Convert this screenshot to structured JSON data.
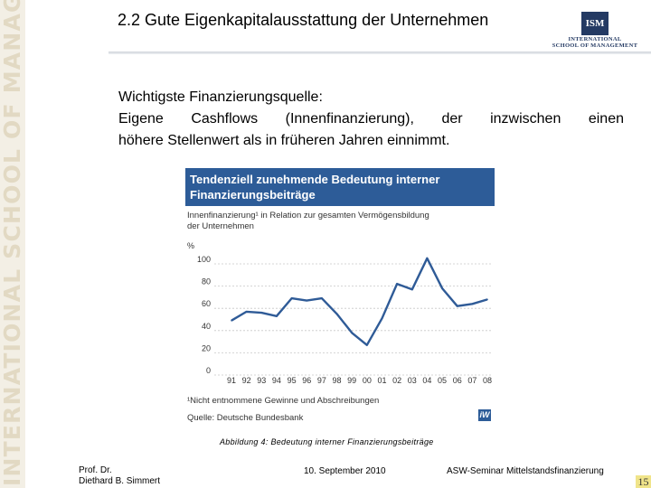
{
  "sidebar": {
    "brand_text": "INTERNATIONAL SCHOOL OF MANAGEMENT"
  },
  "header": {
    "title": "2.2 Gute Eigenkapitalausstattung der Unternehmen"
  },
  "logo": {
    "mark": "ISM",
    "line1": "INTERNATIONAL",
    "line2": "SCHOOL OF MANAGEMENT"
  },
  "body": {
    "line1": "Wichtigste Finanzierungsquelle:",
    "line2": "Eigene Cashflows (Innenfinanzierung), der inzwischen einen",
    "line3": "höhere Stellenwert als in früheren Jahren einnimmt."
  },
  "figure": {
    "title_line1": "Tendenziell zunehmende Bedeutung interner",
    "title_line2": "Finanzierungsbeiträge",
    "subtitle_line1": "Innenfinanzierung¹ in Relation zur gesamten Vermögensbildung",
    "subtitle_line2": "der Unternehmen",
    "unit": "%",
    "footnote": "¹Nicht entnommene Gewinne und Abschreibungen",
    "source": "Quelle: Deutsche Bundesbank",
    "badge": "iW"
  },
  "chart_data": {
    "type": "line",
    "title": "Tendenziell zunehmende Bedeutung interner Finanzierungsbeiträge",
    "subtitle": "Innenfinanzierung¹ in Relation zur gesamten Vermögensbildung der Unternehmen",
    "ylabel": "%",
    "ylim": [
      0,
      100
    ],
    "yticks": [
      0,
      20,
      40,
      60,
      80,
      100
    ],
    "categories": [
      "91",
      "92",
      "93",
      "94",
      "95",
      "96",
      "97",
      "98",
      "99",
      "00",
      "01",
      "02",
      "03",
      "04",
      "05",
      "06",
      "07",
      "08"
    ],
    "series": [
      {
        "values": [
          49,
          57,
          56,
          53,
          69,
          67,
          69,
          55,
          38,
          27,
          51,
          82,
          77,
          105,
          78,
          62,
          64,
          68
        ]
      }
    ],
    "line_color": "#2f5b97"
  },
  "caption": "Abbildung 4: Bedeutung interner Finanzierungsbeiträge",
  "footer": {
    "author_line1": "Prof. Dr.",
    "author_line2": "Diethard B. Simmert",
    "date": "10. September 2010",
    "seminar": "ASW-Seminar Mittelstandsfinanzierung",
    "page": "15"
  }
}
